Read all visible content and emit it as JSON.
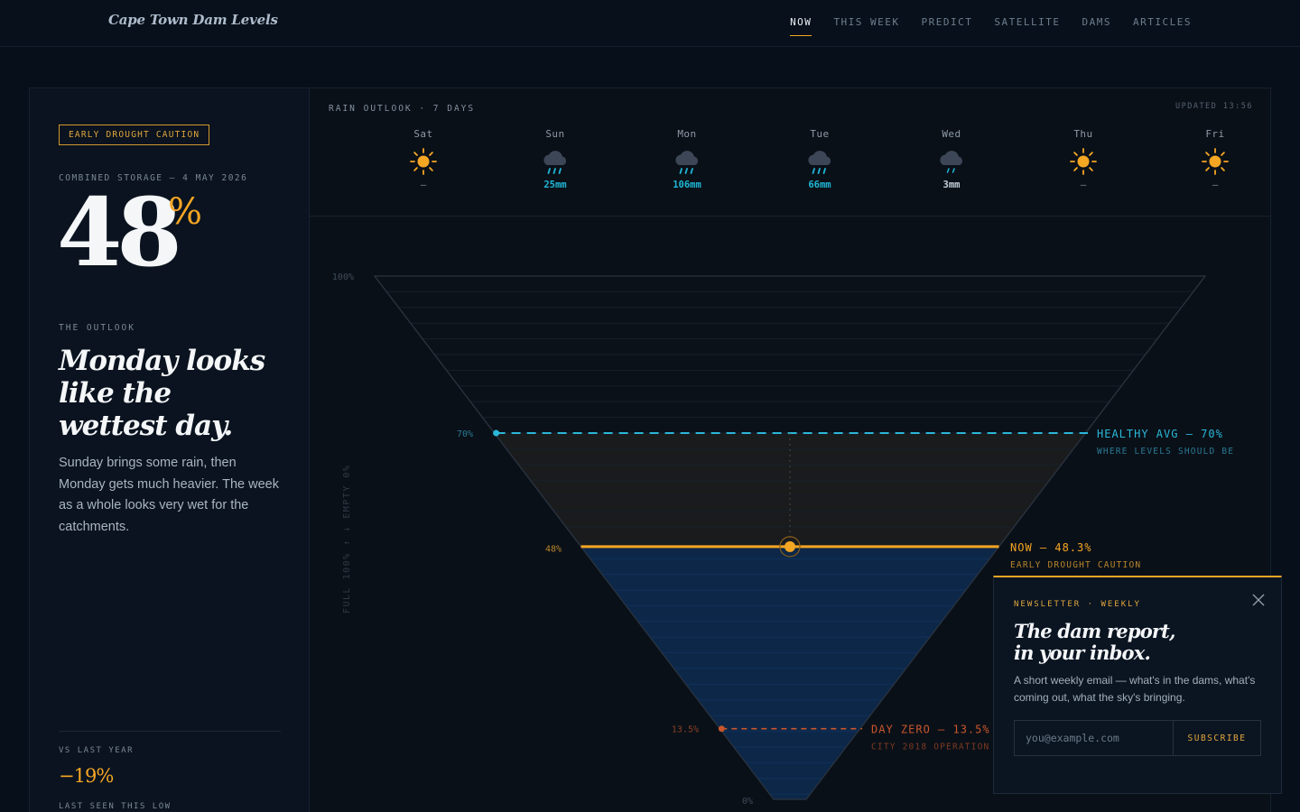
{
  "header": {
    "brand": "Cape Town Dam Levels",
    "nav": [
      {
        "label": "NOW",
        "active": true
      },
      {
        "label": "THIS WEEK",
        "active": false
      },
      {
        "label": "PREDICT",
        "active": false
      },
      {
        "label": "SATELLITE",
        "active": false
      },
      {
        "label": "DAMS",
        "active": false
      },
      {
        "label": "ARTICLES",
        "active": false
      }
    ]
  },
  "sidebar": {
    "badge": "EARLY DROUGHT CAUTION",
    "combined_label": "COMBINED STORAGE — 4 MAY 2026",
    "big_value": "48",
    "big_unit": "%",
    "outlook_label": "THE OUTLOOK",
    "headline": "Monday looks like the wettest day.",
    "body": "Sunday brings some rain, then Monday gets much heavier. The week as a whole looks very wet for the catchments.",
    "vs_label": "VS LAST YEAR",
    "vs_value": "−19%",
    "last_seen_label": "LAST SEEN THIS LOW"
  },
  "forecast": {
    "title": "RAIN OUTLOOK · 7 DAYS",
    "updated": "UPDATED 13:56",
    "days": [
      {
        "name": "Sat",
        "icon": "sun-icon",
        "amount": "—",
        "kind": "dry"
      },
      {
        "name": "Sun",
        "icon": "rain-cloud-icon",
        "amount": "25mm",
        "kind": "rain"
      },
      {
        "name": "Mon",
        "icon": "rain-cloud-icon",
        "amount": "106mm",
        "kind": "rain"
      },
      {
        "name": "Tue",
        "icon": "rain-cloud-icon",
        "amount": "66mm",
        "kind": "rain"
      },
      {
        "name": "Wed",
        "icon": "light-rain-cloud-icon",
        "amount": "3mm",
        "kind": "light"
      },
      {
        "name": "Thu",
        "icon": "sun-icon",
        "amount": "—",
        "kind": "dry"
      },
      {
        "name": "Fri",
        "icon": "sun-icon",
        "amount": "—",
        "kind": "dry"
      }
    ]
  },
  "chart_data": {
    "type": "area",
    "description_axis": "FULL 100% ↑ ↓ EMPTY 0%",
    "tick_labels": [
      "100%",
      "70%",
      "48%",
      "13.5%",
      "0%"
    ],
    "current_level": 48.3,
    "current_tick": 48,
    "markers": [
      {
        "name": "healthy",
        "value": 70,
        "label": "HEALTHY AVG — 70%",
        "sublabel": "WHERE LEVELS SHOULD BE",
        "color": "#2bb7d8"
      },
      {
        "name": "now",
        "value": 48.3,
        "label": "NOW — 48.3%",
        "sublabel": "EARLY DROUGHT CAUTION",
        "color": "#f5a623"
      },
      {
        "name": "day-zero",
        "value": 13.5,
        "label": "DAY ZERO — 13.5%",
        "sublabel": "CITY 2018 OPERATION",
        "color": "#c8562b"
      }
    ],
    "ylim": [
      0,
      100
    ]
  },
  "newsletter": {
    "kicker": "NEWSLETTER · WEEKLY",
    "title_line1": "The dam report,",
    "title_line2": "in your inbox.",
    "body": "A short weekly email — what's in the dams, what's coming out, what the sky's bringing.",
    "placeholder": "you@example.com",
    "button": "SUBSCRIBE"
  },
  "colors": {
    "accent": "#f5a623",
    "healthy": "#2bb7d8",
    "danger": "#c8562b",
    "water": "#0c2748"
  }
}
